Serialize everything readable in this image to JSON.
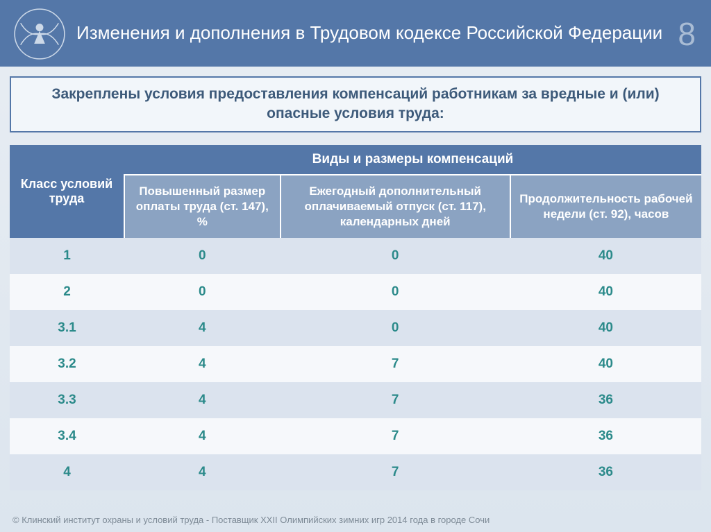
{
  "header": {
    "title": "Изменения и дополнения в Трудовом кодексе Российской Федерации",
    "page_number": "8"
  },
  "subtitle": "Закреплены условия предоставления компенсаций работникам за вредные и (или) опасные условия труда:",
  "table": {
    "type": "table",
    "header_class": "Класс условий труда",
    "header_types": "Виды и размеры компенсаций",
    "columns": [
      "Повышенный размер оплаты труда (ст. 147), %",
      "Ежегодный дополнительный оплачиваемый отпуск (ст. 117), календарных дней",
      "Продолжительность рабочей недели (ст. 92), часов"
    ],
    "column_widths": [
      "165px",
      "240px",
      "320px",
      "275px"
    ],
    "rows": [
      {
        "class": "1",
        "vals": [
          "0",
          "0",
          "40"
        ]
      },
      {
        "class": "2",
        "vals": [
          "0",
          "0",
          "40"
        ]
      },
      {
        "class": "3.1",
        "vals": [
          "4",
          "0",
          "40"
        ]
      },
      {
        "class": "3.2",
        "vals": [
          "4",
          "7",
          "40"
        ]
      },
      {
        "class": "3.3",
        "vals": [
          "4",
          "7",
          "36"
        ]
      },
      {
        "class": "3.4",
        "vals": [
          "4",
          "7",
          "36"
        ]
      },
      {
        "class": "4",
        "vals": [
          "4",
          "7",
          "36"
        ]
      }
    ],
    "colors": {
      "header_bg": "#5477a8",
      "subheader_bg": "#8ba3c2",
      "header_text": "#ffffff",
      "row_alt_bg": "#dbe3ee",
      "row_plain_bg": "#f6f8fb",
      "value_text": "#2b8a8a",
      "border": "#ffffff"
    },
    "fontsize_header": 18,
    "fontsize_cell": 19
  },
  "footer": "© Клинский институт охраны и условий труда - Поставщик XXII Олимпийских зимних игр 2014 года в городе Сочи"
}
